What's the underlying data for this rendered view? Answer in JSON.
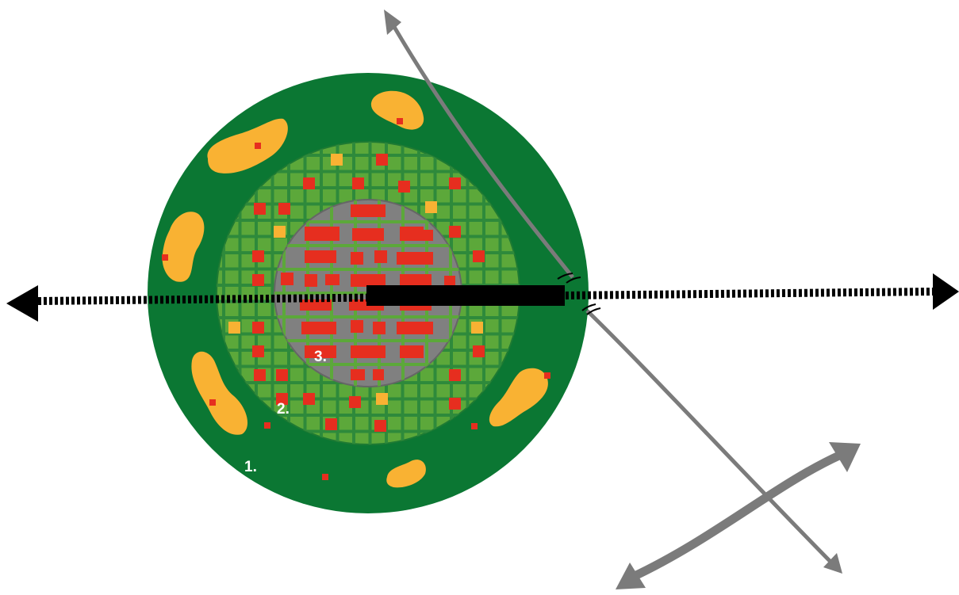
{
  "colors": {
    "background": "#ffffff",
    "outer_zone": "#0b7733",
    "middle_zone": "#5ca83a",
    "middle_grid": "#2e8a3b",
    "core_zone": "#808080",
    "core_grid": "#5ca83a",
    "building": "#e62e1f",
    "patch": "#f9b233",
    "road_gray": "#7b7b7b",
    "road_black": "#000000"
  },
  "zones": [
    {
      "id": "outer",
      "label": "1."
    },
    {
      "id": "middle",
      "label": "2."
    },
    {
      "id": "core",
      "label": "3."
    }
  ],
  "icons": {
    "arrowheads": "arrow-head-icon",
    "bridge": "bridge-gap-icon"
  }
}
